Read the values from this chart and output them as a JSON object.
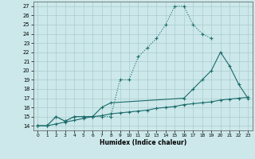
{
  "xlabel": "Humidex (Indice chaleur)",
  "bg_color": "#cce8ea",
  "grid_color": "#aacccc",
  "line_color": "#1a6b6b",
  "xlim": [
    -0.5,
    23.5
  ],
  "ylim": [
    13.5,
    27.5
  ],
  "xticks": [
    0,
    1,
    2,
    3,
    4,
    5,
    6,
    7,
    8,
    9,
    10,
    11,
    12,
    13,
    14,
    15,
    16,
    17,
    18,
    19,
    20,
    21,
    22,
    23
  ],
  "yticks": [
    14,
    15,
    16,
    17,
    18,
    19,
    20,
    21,
    22,
    23,
    24,
    25,
    26,
    27
  ],
  "curve1_x": [
    0,
    1,
    2,
    3,
    4,
    5,
    6,
    7,
    8,
    9,
    10,
    11,
    12,
    13,
    14,
    15,
    16,
    17,
    18,
    19
  ],
  "curve1_y": [
    14,
    14,
    15,
    14.5,
    15,
    15,
    15,
    15,
    15,
    19,
    19,
    21.5,
    22.5,
    23.5,
    25,
    27,
    27,
    25,
    24,
    23.5
  ],
  "curve2_x": [
    0,
    1,
    2,
    3,
    4,
    5,
    6,
    7,
    8,
    16,
    17,
    18,
    19,
    20,
    21,
    22,
    23
  ],
  "curve2_y": [
    14,
    14,
    15,
    14.5,
    15,
    15,
    15,
    16,
    16.5,
    17,
    18,
    19,
    20,
    22,
    20.5,
    18.5,
    17
  ],
  "curve3_x": [
    0,
    1,
    2,
    3,
    4,
    5,
    6,
    7,
    8,
    9,
    10,
    11,
    12,
    13,
    14,
    15,
    16,
    17,
    18,
    19,
    20,
    21,
    22,
    23
  ],
  "curve3_y": [
    14,
    14,
    14.2,
    14.4,
    14.6,
    14.8,
    15.0,
    15.1,
    15.3,
    15.4,
    15.5,
    15.6,
    15.7,
    15.9,
    16.0,
    16.1,
    16.3,
    16.4,
    16.5,
    16.6,
    16.8,
    16.9,
    17.0,
    17.1
  ]
}
